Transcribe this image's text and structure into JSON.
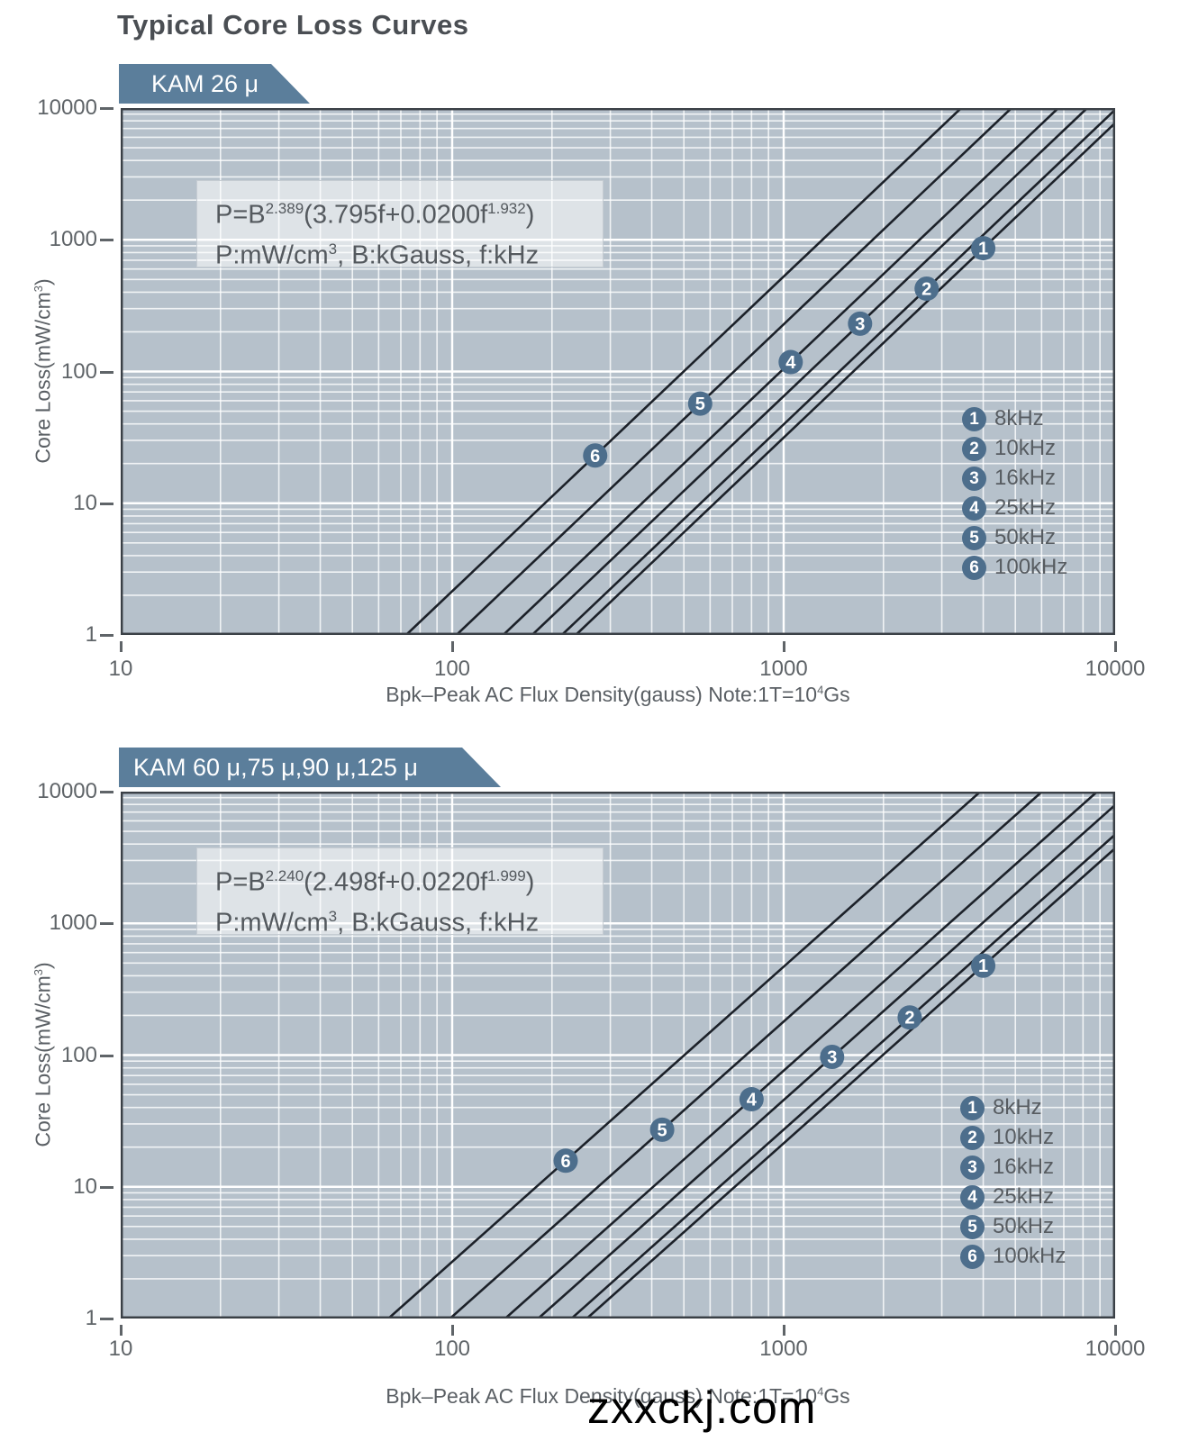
{
  "page": {
    "title": "Typical Core Loss Curves",
    "watermark": "zxxckj.com"
  },
  "colors": {
    "plot_bg": "#b6c1cb",
    "grid_minor": "rgba(255,255,255,0.8)",
    "grid_major": "#ffffff",
    "border": "#3a4046",
    "curve": "#1c2129",
    "marker_fill": "#4d6e8c",
    "marker_text": "#ffffff",
    "banner_bg": "#5b7e9b",
    "banner_text": "#ffffff",
    "title_text": "#4a4e53",
    "tick_text": "#5f6468",
    "label_text": "#5a5f64"
  },
  "chart_data": [
    {
      "type": "line",
      "banner": "KAM  26 μ",
      "x_scale": "log",
      "y_scale": "log",
      "xlim": [
        10,
        10000
      ],
      "ylim": [
        1,
        10000
      ],
      "grid": "on",
      "legend_position": "lower right",
      "formula": {
        "base": "P=B",
        "b_exp_text": "2.389",
        "mid": "(3.795f+0.0200f",
        "f_exp_text": "1.932",
        "close": ")",
        "units_base": "P:mW/cm",
        "units_sup": "3",
        "units_rest": ",  B:kGauss,  f:kHz"
      },
      "model": {
        "b_exp": 2.389,
        "c1": 3.795,
        "c2": 0.02,
        "f_exp": 1.932
      },
      "xlabel_pre": "Bpk–Peak AC Flux Density(gauss) Note:1T=10",
      "xlabel_sup": "4",
      "xlabel_post": "Gs",
      "ylabel_pre": "Core Loss(mW/cm",
      "ylabel_sup": "3",
      "ylabel_post": ")",
      "x_ticks": [
        "10",
        "100",
        "1000",
        "10000"
      ],
      "y_ticks": [
        "10000",
        "1000",
        "100",
        "10",
        "1"
      ],
      "series": [
        {
          "id": "1",
          "f": 8,
          "label": "8kHz",
          "marker_B": 4000
        },
        {
          "id": "2",
          "f": 10,
          "label": "10kHz",
          "marker_B": 2700
        },
        {
          "id": "3",
          "f": 16,
          "label": "16kHz",
          "marker_B": 1700
        },
        {
          "id": "4",
          "f": 25,
          "label": "25kHz",
          "marker_B": 1050
        },
        {
          "id": "5",
          "f": 50,
          "label": "50kHz",
          "marker_B": 560
        },
        {
          "id": "6",
          "f": 100,
          "label": "100kHz",
          "marker_B": 270
        }
      ]
    },
    {
      "type": "line",
      "banner": "KAM  60 μ,75 μ,90 μ,125 μ",
      "x_scale": "log",
      "y_scale": "log",
      "xlim": [
        10,
        10000
      ],
      "ylim": [
        1,
        10000
      ],
      "grid": "on",
      "legend_position": "lower right",
      "formula": {
        "base": "P=B",
        "b_exp_text": "2.240",
        "mid": "(2.498f+0.0220f",
        "f_exp_text": "1.999",
        "close": ")",
        "units_base": "P:mW/cm",
        "units_sup": "3",
        "units_rest": ",  B:kGauss,  f:kHz"
      },
      "model": {
        "b_exp": 2.24,
        "c1": 2.498,
        "c2": 0.022,
        "f_exp": 1.999
      },
      "xlabel_pre": "Bpk–Peak AC Flux Density(gauss) Note:1T=10",
      "xlabel_sup": "4",
      "xlabel_post": "Gs",
      "ylabel_pre": "Core Loss(mW/cm",
      "ylabel_sup": "3",
      "ylabel_post": ")",
      "x_ticks": [
        "10",
        "100",
        "1000",
        "10000"
      ],
      "y_ticks": [
        "10000",
        "1000",
        "100",
        "10",
        "1"
      ],
      "series": [
        {
          "id": "1",
          "f": 8,
          "label": "8kHz",
          "marker_B": 4000
        },
        {
          "id": "2",
          "f": 10,
          "label": "10kHz",
          "marker_B": 2400
        },
        {
          "id": "3",
          "f": 16,
          "label": "16kHz",
          "marker_B": 1400
        },
        {
          "id": "4",
          "f": 25,
          "label": "25kHz",
          "marker_B": 800
        },
        {
          "id": "5",
          "f": 50,
          "label": "50kHz",
          "marker_B": 430
        },
        {
          "id": "6",
          "f": 100,
          "label": "100kHz",
          "marker_B": 220
        }
      ]
    }
  ]
}
